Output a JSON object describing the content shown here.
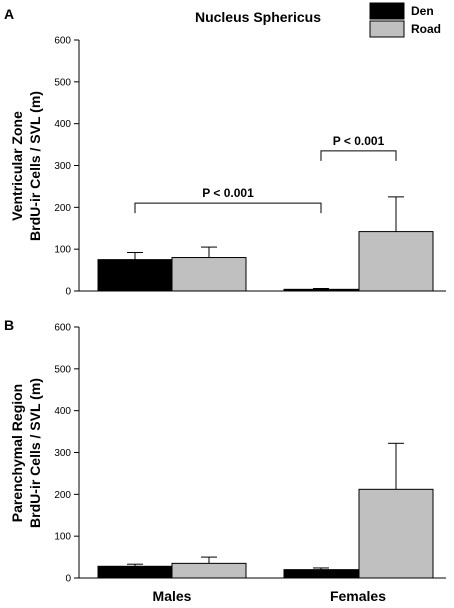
{
  "chart_data": [
    {
      "type": "bar",
      "panel_label": "A",
      "title": "Nucleus Sphericus",
      "ylabel_lines": [
        "Ventricular Zone",
        "BrdU-ir Cells / SVL (m)"
      ],
      "ylim": [
        0,
        600
      ],
      "yticks": [
        0,
        100,
        200,
        300,
        400,
        500,
        600
      ],
      "categories": [
        "Males",
        "Females"
      ],
      "series": [
        {
          "name": "Den",
          "color": "#000000",
          "values": [
            75,
            4
          ],
          "errors": [
            17,
            2
          ]
        },
        {
          "name": "Road",
          "color": "#c0c0c0",
          "values": [
            80,
            142
          ],
          "errors": [
            25,
            83
          ]
        }
      ],
      "annotations": [
        {
          "text": "P < 0.001",
          "type": "bracket",
          "from": "Males",
          "to": "Females",
          "y": 210
        },
        {
          "text": "P < 0.001",
          "type": "bracket",
          "from": "Females-Den",
          "to": "Females-Road",
          "y": 335
        }
      ],
      "legend": {
        "placement": "top-right",
        "entries": [
          "Den",
          "Road"
        ]
      }
    },
    {
      "type": "bar",
      "panel_label": "B",
      "ylabel_lines": [
        "Parenchymal Region",
        "BrdU-ir Cells / SVL (m)"
      ],
      "ylim": [
        0,
        600
      ],
      "yticks": [
        0,
        100,
        200,
        300,
        400,
        500,
        600
      ],
      "categories": [
        "Males",
        "Females"
      ],
      "series": [
        {
          "name": "Den",
          "color": "#000000",
          "values": [
            28,
            20
          ],
          "errors": [
            5,
            4
          ]
        },
        {
          "name": "Road",
          "color": "#c0c0c0",
          "values": [
            35,
            212
          ],
          "errors": [
            15,
            110
          ]
        }
      ]
    }
  ]
}
